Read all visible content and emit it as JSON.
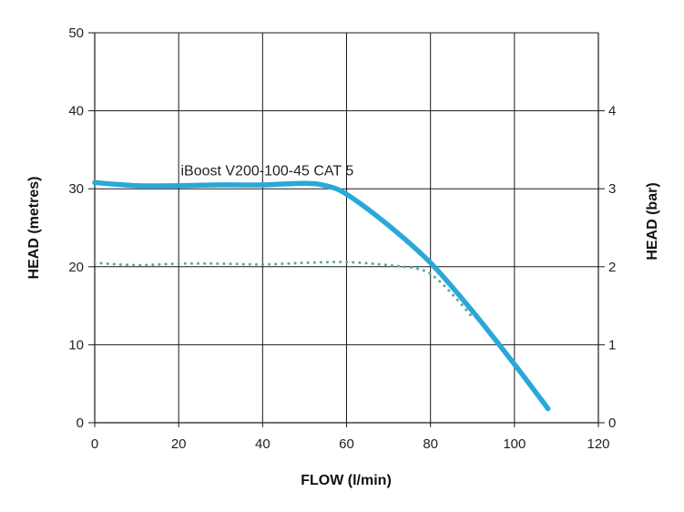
{
  "chart_data": {
    "type": "line",
    "xlabel": "FLOW (l/min)",
    "ylabel": "HEAD (metres)",
    "y2label": "HEAD (bar)",
    "xlim": [
      0,
      120
    ],
    "ylim": [
      0,
      50
    ],
    "y2lim": [
      0,
      5
    ],
    "xticks": [
      "0",
      "20",
      "40",
      "60",
      "80",
      "100",
      "120"
    ],
    "yticks": [
      "0",
      "10",
      "20",
      "30",
      "40",
      "50"
    ],
    "y2ticks": [
      "0",
      "1",
      "2",
      "3",
      "4"
    ],
    "grid": true,
    "annotations": [
      {
        "text": "iBoost V200-100-45 CAT 5",
        "x": 20.5,
        "y": 31.7
      }
    ],
    "series": [
      {
        "style": "solid",
        "color": "#2aa8d8",
        "points": [
          [
            0,
            30.8
          ],
          [
            10,
            30.4
          ],
          [
            20,
            30.4
          ],
          [
            30,
            30.5
          ],
          [
            40,
            30.5
          ],
          [
            50,
            30.7
          ],
          [
            55,
            30.4
          ],
          [
            60,
            29.3
          ],
          [
            70,
            25.3
          ],
          [
            80,
            20.5
          ],
          [
            90,
            14.3
          ],
          [
            100,
            7.5
          ],
          [
            108,
            1.8
          ]
        ]
      },
      {
        "style": "dotted",
        "color": "#5aab9a",
        "points": [
          [
            0,
            20.5
          ],
          [
            10,
            20.2
          ],
          [
            20,
            20.4
          ],
          [
            30,
            20.4
          ],
          [
            40,
            20.3
          ],
          [
            50,
            20.5
          ],
          [
            60,
            20.6
          ],
          [
            70,
            20.2
          ],
          [
            78,
            19.6
          ],
          [
            82,
            18.2
          ],
          [
            86,
            16.0
          ],
          [
            90,
            13.5
          ]
        ]
      }
    ]
  }
}
